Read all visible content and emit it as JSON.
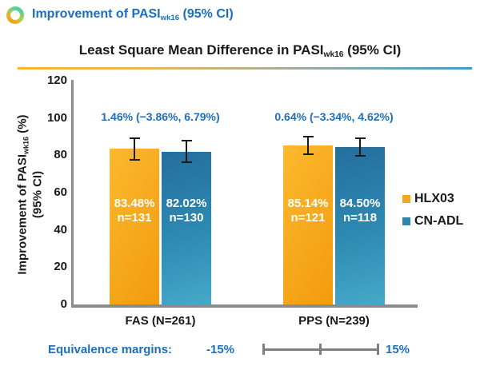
{
  "header": {
    "icon": "ring-gradient-icon",
    "title_prefix": "Improvement of PASI",
    "title_sub": "wk16",
    "title_suffix": " (95% CI)"
  },
  "subtitle": {
    "prefix": "Least Square Mean Difference in PASI",
    "sub": "wk16",
    "suffix": " (95% CI)"
  },
  "colors": {
    "accent_blue": "#1C6FBE",
    "hlx03_orange": "#F5A81C",
    "cnadl_blue": "#2E86AE",
    "axis_gray": "#8B8B8B",
    "bracket_gray": "#7F7F7F"
  },
  "chart_data": {
    "type": "bar",
    "title": "Least Square Mean Difference in PASIwk16 (95% CI)",
    "ylabel": "Improvement of PASIwk16 (%) (95% CI)",
    "ylabel_line1_prefix": "Improvement of PASI",
    "ylabel_sub": "wk16",
    "ylabel_line1_suffix": " (%)",
    "ylabel_line2": "(95% CI)",
    "ylim": [
      0,
      120
    ],
    "yticks": [
      0,
      20,
      40,
      60,
      80,
      100,
      120
    ],
    "grid": false,
    "legend_position": "right",
    "categories": [
      "FAS (N=261)",
      "PPS (N=239)"
    ],
    "series": [
      {
        "name": "HLX03",
        "color": "#F5A81C",
        "values": [
          83.48,
          85.14
        ],
        "value_labels": [
          "83.48%",
          "85.14%"
        ],
        "n_labels": [
          "n=131",
          "n=121"
        ],
        "ci_halfwidth_est": [
          5.8,
          4.7
        ]
      },
      {
        "name": "CN-ADL",
        "color": "#2E86AE",
        "values": [
          82.02,
          84.5
        ],
        "value_labels": [
          "82.02%",
          "84.50%"
        ],
        "n_labels": [
          "n=130",
          "n=118"
        ],
        "ci_halfwidth_est": [
          5.8,
          4.7
        ]
      }
    ],
    "annotations": [
      "1.46% (−3.86%, 6.79%)",
      "0.64% (−3.34%, 4.62%)"
    ]
  },
  "footer": {
    "label": "Equivalence margins:",
    "left_value": "-15%",
    "right_value": "15%"
  }
}
